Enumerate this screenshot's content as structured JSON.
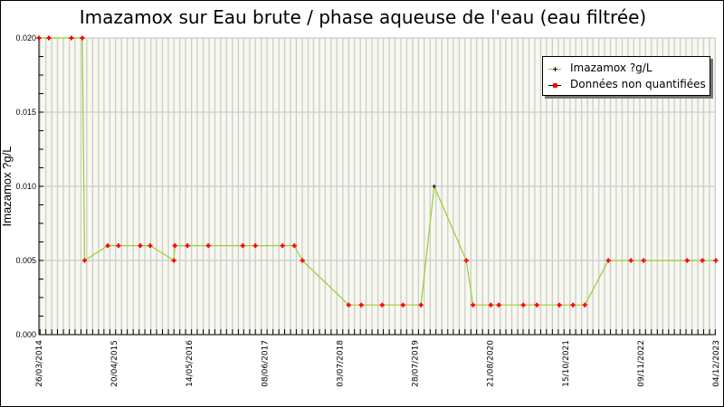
{
  "title": "Imazamox sur Eau brute / phase aqueuse de l'eau (eau filtrée)",
  "chart_data": {
    "type": "line",
    "title": "Imazamox sur Eau brute / phase aqueuse de l'eau (eau filtrée)",
    "xlabel": "",
    "ylabel": "Imazamox ?g/L",
    "xlim": [
      "2014-03-26",
      "2023-12-04"
    ],
    "ylim": [
      0,
      0.02
    ],
    "yticks": [
      "0.000",
      "0.005",
      "0.010",
      "0.015",
      "0.020"
    ],
    "xticks": [
      "26/03/2014",
      "20/04/2015",
      "14/05/2016",
      "08/06/2017",
      "03/07/2018",
      "28/07/2019",
      "21/08/2020",
      "15/10/2021",
      "09/11/2022",
      "04/12/2023"
    ],
    "grid": true,
    "legend_position": "top-right",
    "colors": {
      "line": "#9acd32",
      "quantified": "#000000",
      "non_quantified": "#ff0000",
      "plot_bg": "#f8f8f0",
      "grid": "#cccccc"
    },
    "series": [
      {
        "name": "Imazamox ?g/L",
        "points": [
          [
            "2014-03-26",
            0.02,
            0
          ],
          [
            "2014-05-17",
            0.02,
            0
          ],
          [
            "2014-09-12",
            0.02,
            0
          ],
          [
            "2014-11-08",
            0.02,
            0
          ],
          [
            "2014-11-20",
            0.005,
            0
          ],
          [
            "2015-03-21",
            0.006,
            0
          ],
          [
            "2015-05-16",
            0.006,
            0
          ],
          [
            "2015-09-07",
            0.006,
            0
          ],
          [
            "2015-10-29",
            0.006,
            0
          ],
          [
            "2016-03-01",
            0.005,
            0
          ],
          [
            "2016-03-06",
            0.006,
            0
          ],
          [
            "2016-05-11",
            0.006,
            0
          ],
          [
            "2016-08-28",
            0.006,
            0
          ],
          [
            "2017-02-24",
            0.006,
            0
          ],
          [
            "2017-05-01",
            0.006,
            0
          ],
          [
            "2017-09-20",
            0.006,
            0
          ],
          [
            "2017-11-21",
            0.006,
            0
          ],
          [
            "2018-01-02",
            0.005,
            0
          ],
          [
            "2018-09-01",
            0.002,
            0
          ],
          [
            "2018-11-06",
            0.002,
            0
          ],
          [
            "2019-02-23",
            0.002,
            0
          ],
          [
            "2019-06-12",
            0.002,
            0
          ],
          [
            "2019-09-14",
            0.002,
            0
          ],
          [
            "2019-11-22",
            0.01,
            1
          ],
          [
            "2020-05-08",
            0.005,
            0
          ],
          [
            "2020-06-12",
            0.002,
            0
          ],
          [
            "2020-09-13",
            0.002,
            0
          ],
          [
            "2020-10-25",
            0.002,
            0
          ],
          [
            "2021-03-02",
            0.002,
            0
          ],
          [
            "2021-05-12",
            0.002,
            0
          ],
          [
            "2021-09-07",
            0.002,
            0
          ],
          [
            "2021-11-17",
            0.002,
            0
          ],
          [
            "2022-01-18",
            0.002,
            0
          ],
          [
            "2022-05-21",
            0.005,
            0
          ],
          [
            "2022-09-16",
            0.005,
            0
          ],
          [
            "2022-11-21",
            0.005,
            0
          ],
          [
            "2023-07-07",
            0.005,
            0
          ],
          [
            "2023-09-25",
            0.005,
            0
          ],
          [
            "2023-12-04",
            0.005,
            0
          ]
        ]
      }
    ],
    "legend": [
      "Imazamox ?g/L",
      "Données non quantifiées"
    ]
  }
}
